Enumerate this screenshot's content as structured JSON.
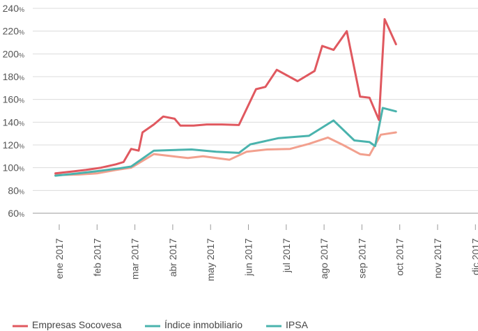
{
  "chart_data": {
    "type": "line",
    "y_unit": "%",
    "ylim": [
      60,
      240
    ],
    "y_ticks": [
      60,
      80,
      100,
      120,
      140,
      160,
      180,
      200,
      220,
      240
    ],
    "x_ticks": [
      "ene 2017",
      "feb 2017",
      "mar 2017",
      "abr 2017",
      "may 2017",
      "jun 2017",
      "jul 2017",
      "ago 2017",
      "sep 2017",
      "oct 2017",
      "nov 2017",
      "dic 2017"
    ],
    "grid": "horizontal",
    "legend": "bottom",
    "series": [
      {
        "name": "Empresas Socovesa",
        "color": "#e0585f",
        "points": [
          [
            -0.1,
            95
          ],
          [
            0.3,
            96.5
          ],
          [
            0.7,
            98
          ],
          [
            1.1,
            100
          ],
          [
            1.5,
            103
          ],
          [
            1.7,
            105
          ],
          [
            1.9,
            116.5
          ],
          [
            2.1,
            115
          ],
          [
            2.2,
            131
          ],
          [
            2.5,
            138
          ],
          [
            2.75,
            145
          ],
          [
            3.05,
            143
          ],
          [
            3.2,
            137
          ],
          [
            3.55,
            137
          ],
          [
            3.9,
            138
          ],
          [
            4.3,
            138
          ],
          [
            4.75,
            137.5
          ],
          [
            5.2,
            169
          ],
          [
            5.45,
            171
          ],
          [
            5.75,
            186
          ],
          [
            6.3,
            176
          ],
          [
            6.75,
            185
          ],
          [
            6.95,
            207
          ],
          [
            7.25,
            203.5
          ],
          [
            7.6,
            220
          ],
          [
            7.95,
            162.5
          ],
          [
            8.2,
            161.5
          ],
          [
            8.45,
            142
          ],
          [
            8.6,
            230.5
          ],
          [
            8.9,
            208.5
          ]
        ]
      },
      {
        "name": "Índice inmobiliario",
        "color": "#f2a08e",
        "points": [
          [
            -0.1,
            93.5
          ],
          [
            0.5,
            94
          ],
          [
            1.0,
            95
          ],
          [
            1.5,
            98
          ],
          [
            1.9,
            100
          ],
          [
            2.5,
            112
          ],
          [
            3.0,
            110
          ],
          [
            3.4,
            108.5
          ],
          [
            3.8,
            110
          ],
          [
            4.5,
            107
          ],
          [
            4.95,
            114
          ],
          [
            5.5,
            116
          ],
          [
            6.1,
            116.5
          ],
          [
            6.6,
            121
          ],
          [
            7.1,
            126.5
          ],
          [
            7.5,
            120
          ],
          [
            7.95,
            112
          ],
          [
            8.2,
            111
          ],
          [
            8.5,
            129
          ],
          [
            8.9,
            131
          ]
        ]
      },
      {
        "name": "IPSA",
        "color": "#4ab3ad",
        "points": [
          [
            -0.1,
            93
          ],
          [
            0.5,
            95
          ],
          [
            1.0,
            97
          ],
          [
            1.5,
            99
          ],
          [
            1.9,
            101
          ],
          [
            2.5,
            115
          ],
          [
            3.5,
            116
          ],
          [
            4.15,
            114
          ],
          [
            4.75,
            113
          ],
          [
            5.05,
            120.5
          ],
          [
            5.8,
            126
          ],
          [
            6.6,
            128
          ],
          [
            7.25,
            141.5
          ],
          [
            7.8,
            124
          ],
          [
            8.2,
            122.5
          ],
          [
            8.35,
            119
          ],
          [
            8.55,
            152.5
          ],
          [
            8.9,
            149.5
          ]
        ]
      }
    ]
  }
}
